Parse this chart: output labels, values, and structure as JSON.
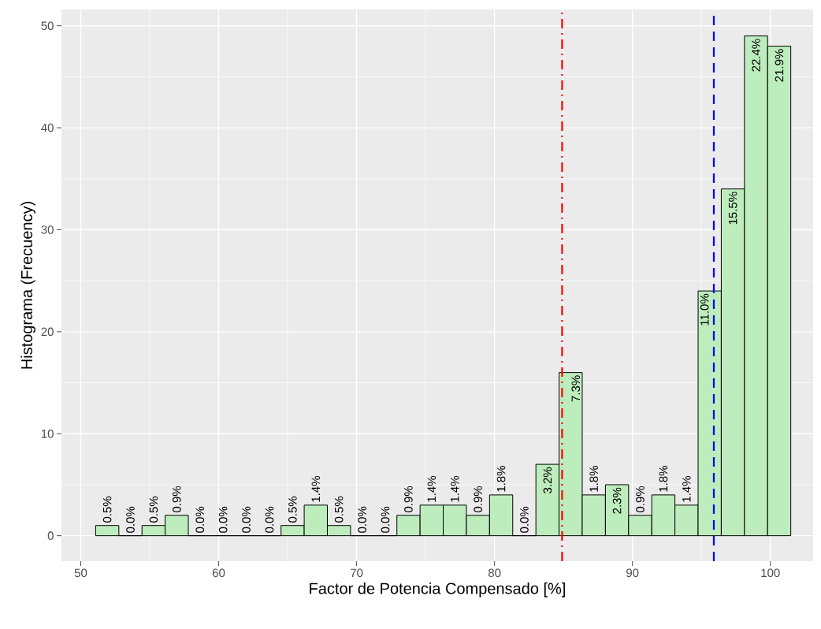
{
  "chart_data": {
    "type": "histogram",
    "xlabel": "Factor de Potencia Compensado [%]",
    "ylabel": "Histograma (Frecuency)",
    "bins": [
      51.08,
      52.76,
      54.44,
      56.12,
      57.8,
      59.48,
      61.16,
      62.84,
      64.52,
      66.2,
      67.88,
      69.56,
      71.24,
      72.92,
      74.6,
      76.28,
      77.96,
      79.64,
      81.32,
      83.0,
      84.68,
      86.36,
      88.04,
      89.72,
      91.4,
      93.08,
      94.76,
      96.44,
      98.12,
      99.8,
      101.48
    ],
    "values": [
      1,
      0,
      1,
      2,
      0,
      0,
      0,
      0,
      1,
      3,
      1,
      0,
      0,
      2,
      3,
      3,
      2,
      4,
      0,
      7,
      16,
      4,
      5,
      2,
      4,
      3,
      24,
      34,
      49,
      48
    ],
    "annotations": [
      {
        "text": "0.5%",
        "x": 51.92,
        "y": 1
      },
      {
        "text": "0.0%",
        "x": 53.6,
        "y": 0
      },
      {
        "text": "0.5%",
        "x": 55.28,
        "y": 1
      },
      {
        "text": "0.9%",
        "x": 56.96,
        "y": 2
      },
      {
        "text": "0.0%",
        "x": 58.64,
        "y": 0
      },
      {
        "text": "0.0%",
        "x": 60.32,
        "y": 0
      },
      {
        "text": "0.0%",
        "x": 62.0,
        "y": 0
      },
      {
        "text": "0.0%",
        "x": 63.68,
        "y": 0
      },
      {
        "text": "0.5%",
        "x": 65.36,
        "y": 1
      },
      {
        "text": "1.4%",
        "x": 67.04,
        "y": 3
      },
      {
        "text": "0.5%",
        "x": 68.72,
        "y": 1
      },
      {
        "text": "0.0%",
        "x": 70.4,
        "y": 0
      },
      {
        "text": "0.0%",
        "x": 72.08,
        "y": 0
      },
      {
        "text": "0.9%",
        "x": 73.76,
        "y": 2
      },
      {
        "text": "1.4%",
        "x": 75.44,
        "y": 3
      },
      {
        "text": "1.4%",
        "x": 77.12,
        "y": 3
      },
      {
        "text": "0.9%",
        "x": 78.8,
        "y": 2
      },
      {
        "text": "1.8%",
        "x": 80.48,
        "y": 4
      },
      {
        "text": "0.0%",
        "x": 82.16,
        "y": 0
      },
      {
        "text": "3.2%",
        "x": 83.84,
        "y": 7
      },
      {
        "text": "7.3%",
        "x": 85.52,
        "y": 16
      },
      {
        "text": "1.8%",
        "x": 87.2,
        "y": 4
      },
      {
        "text": "2.3%",
        "x": 88.88,
        "y": 5
      },
      {
        "text": "0.9%",
        "x": 90.56,
        "y": 2
      },
      {
        "text": "1.8%",
        "x": 92.24,
        "y": 4
      },
      {
        "text": "1.4%",
        "x": 93.92,
        "y": 3
      },
      {
        "text": "11.0%",
        "x": 95.6,
        "y": 24
      },
      {
        "text": "15.5%",
        "x": 97.28,
        "y": 34
      },
      {
        "text": "22.4%",
        "x": 98.96,
        "y": 49
      },
      {
        "text": "21.9%",
        "x": 100.64,
        "y": 48
      }
    ],
    "color": "#bdedbd",
    "xlim": [
      48.6,
      103.1
    ],
    "ylim": [
      -2.5,
      51.6
    ],
    "xticks": [
      50,
      60,
      70,
      80,
      90,
      100
    ],
    "yticks": [
      0,
      10,
      20,
      30,
      40,
      50
    ],
    "grid": true,
    "ref_lines": [
      {
        "axis": "x",
        "value": 84.9,
        "color": "#ff0000",
        "line_style": "dashdot"
      },
      {
        "axis": "x",
        "value": 95.9,
        "color": "#0000ff",
        "line_style": "dashed"
      }
    ]
  }
}
